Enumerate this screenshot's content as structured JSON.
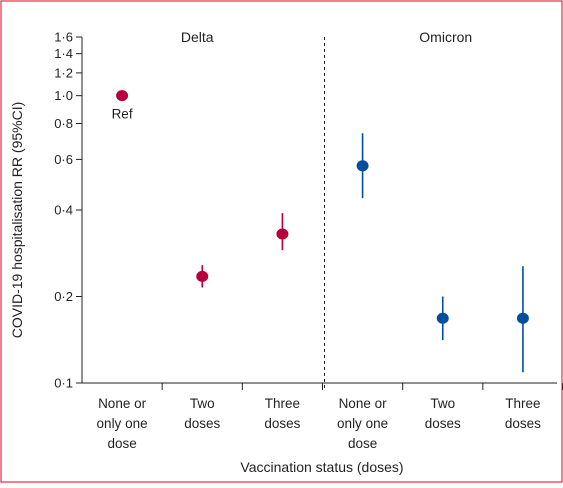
{
  "chart_data": {
    "type": "scatter",
    "scale": "log",
    "ylim": [
      0.1,
      1.6
    ],
    "yticks": [
      {
        "value": 0.1,
        "label": "0·1"
      },
      {
        "value": 0.2,
        "label": "0·2"
      },
      {
        "value": 0.4,
        "label": "0·4"
      },
      {
        "value": 0.6,
        "label": "0·6"
      },
      {
        "value": 0.8,
        "label": "0·8"
      },
      {
        "value": 1.0,
        "label": "1·0"
      },
      {
        "value": 1.2,
        "label": "1·2"
      },
      {
        "value": 1.4,
        "label": "1·4"
      },
      {
        "value": 1.6,
        "label": "1·6"
      }
    ],
    "ylabel": "COVID-19 hospitalisation RR (95%CI)",
    "xlabel": "Vaccination status (doses)",
    "categories": [
      [
        "None or",
        "only one",
        "dose"
      ],
      [
        "Two",
        "doses"
      ],
      [
        "Three",
        "doses"
      ],
      [
        "None or",
        "only one",
        "dose"
      ],
      [
        "Two",
        "doses"
      ],
      [
        "Three",
        "doses"
      ]
    ],
    "panels": [
      "Delta",
      "Omicron"
    ],
    "series": [
      {
        "name": "Delta",
        "color": "#b5003c",
        "points": [
          {
            "category": 0,
            "value": 1.0,
            "lower": null,
            "upper": null,
            "label": "Ref"
          },
          {
            "category": 1,
            "value": 0.235,
            "lower": 0.215,
            "upper": 0.257
          },
          {
            "category": 2,
            "value": 0.33,
            "lower": 0.29,
            "upper": 0.39
          }
        ]
      },
      {
        "name": "Omicron",
        "color": "#004f9f",
        "points": [
          {
            "category": 3,
            "value": 0.57,
            "lower": 0.44,
            "upper": 0.74
          },
          {
            "category": 4,
            "value": 0.168,
            "lower": 0.141,
            "upper": 0.2
          },
          {
            "category": 5,
            "value": 0.168,
            "lower": 0.109,
            "upper": 0.255
          }
        ]
      }
    ],
    "divider": "dashed, between Delta and Omicron",
    "grid": false,
    "border_color": "#e0001b"
  }
}
